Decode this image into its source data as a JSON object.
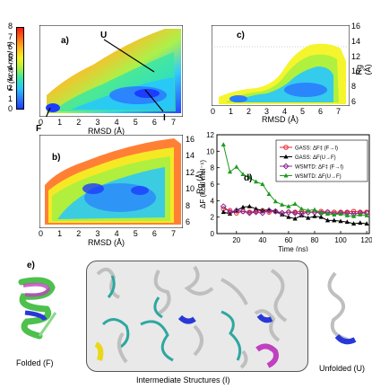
{
  "colorbar": {
    "label": "F (kcal mol⁻¹)",
    "ticks": [
      "0",
      "1",
      "2",
      "3",
      "4",
      "5",
      "6",
      "7",
      "8"
    ],
    "colors": [
      "#1c3cff",
      "#2a7dff",
      "#27c6ff",
      "#35e6a8",
      "#a8f040",
      "#f4f423",
      "#ffb81c",
      "#ff6a12",
      "#ff1a0c"
    ]
  },
  "panels": {
    "a": {
      "letter": "a)",
      "xlabel": "RMSD (Å)",
      "xticks": [
        "0",
        "1",
        "2",
        "3",
        "4",
        "5",
        "6",
        "7"
      ],
      "annotations": {
        "U": "U",
        "F": "F",
        "I": "I"
      }
    },
    "b": {
      "letter": "b)",
      "xlabel": "RMSD (Å)",
      "xticks": [
        "0",
        "1",
        "2",
        "3",
        "4",
        "5",
        "6",
        "7"
      ],
      "ylabel": "Rg (Å)",
      "yticks": [
        "6",
        "8",
        "10",
        "12",
        "14",
        "16"
      ]
    },
    "c": {
      "letter": "c)",
      "xlabel": "RMSD (Å)",
      "xticks": [
        "0",
        "1",
        "2",
        "3",
        "4",
        "5",
        "6",
        "7"
      ],
      "ylabel": "Rg (Å)",
      "yticks": [
        "6",
        "8",
        "10",
        "12",
        "14",
        "16"
      ]
    },
    "d": {
      "letter": "d)"
    },
    "e": {
      "letter": "e)",
      "folded_label": "Folded (F)",
      "intermediate_label": "Intermediate Structures (I)",
      "unfolded_label": "Unfolded (U)"
    }
  },
  "chart_data": {
    "type": "line",
    "xlabel": "Time (ns)",
    "ylabel": "ΔF (kcal mol⁻¹)",
    "xlim": [
      5,
      122
    ],
    "ylim": [
      0,
      12
    ],
    "xticks": [
      20,
      40,
      60,
      80,
      100,
      120
    ],
    "yticks": [
      0,
      2,
      4,
      6,
      8,
      10,
      12
    ],
    "legend_position": "top-right",
    "series": [
      {
        "name": "GASS: ΔF‡ (F→I)",
        "color": "#e8232a",
        "marker": "circle-open",
        "x": [
          10,
          15,
          20,
          25,
          30,
          35,
          40,
          45,
          50,
          55,
          60,
          65,
          70,
          75,
          80,
          85,
          90,
          95,
          100,
          105,
          110,
          115,
          120
        ],
        "y": [
          3.0,
          2.8,
          2.5,
          2.7,
          2.6,
          2.7,
          2.8,
          2.6,
          2.7,
          2.5,
          2.6,
          2.6,
          2.7,
          2.6,
          2.6,
          2.7,
          2.6,
          2.6,
          2.6,
          2.6,
          2.7,
          2.6,
          2.6
        ]
      },
      {
        "name": "GASS: ΔF(U→F)",
        "color": "#000000",
        "marker": "triangle-filled",
        "x": [
          10,
          15,
          20,
          25,
          30,
          35,
          40,
          45,
          50,
          55,
          60,
          65,
          70,
          75,
          80,
          85,
          90,
          95,
          100,
          105,
          110,
          115,
          120
        ],
        "y": [
          2.6,
          2.4,
          2.8,
          3.2,
          3.3,
          3.0,
          2.8,
          2.9,
          2.7,
          2.3,
          2.0,
          1.8,
          2.2,
          1.9,
          2.1,
          2.0,
          1.6,
          1.6,
          1.5,
          1.4,
          1.2,
          1.3,
          1.2
        ]
      },
      {
        "name": "WSMTD: ΔF‡ (F→I)",
        "color": "#8b2a8f",
        "marker": "diamond-open",
        "x": [
          10,
          15,
          20,
          25,
          30,
          35,
          40,
          45,
          50,
          55,
          60,
          65,
          70,
          75,
          80,
          85,
          90,
          95,
          100,
          105,
          110,
          115,
          120
        ],
        "y": [
          3.3,
          2.6,
          2.8,
          2.7,
          2.5,
          2.6,
          2.5,
          2.8,
          2.7,
          2.5,
          2.6,
          2.5,
          2.4,
          2.6,
          2.6,
          2.5,
          2.6,
          2.4,
          2.5,
          2.5,
          2.4,
          2.5,
          2.5
        ]
      },
      {
        "name": "WSMTD: ΔF(U→F)",
        "color": "#1e9a1e",
        "marker": "triangle-filled",
        "x": [
          10,
          15,
          20,
          25,
          30,
          35,
          40,
          45,
          50,
          55,
          60,
          65,
          70,
          75,
          80,
          85,
          90,
          95,
          100,
          105,
          110,
          115,
          120
        ],
        "y": [
          10.8,
          7.5,
          8.1,
          7.2,
          6.8,
          6.3,
          6.0,
          4.8,
          3.9,
          3.5,
          3.3,
          3.6,
          3.0,
          2.8,
          2.9,
          2.5,
          2.4,
          2.3,
          2.4,
          2.2,
          2.1,
          2.3,
          2.2
        ]
      }
    ]
  }
}
